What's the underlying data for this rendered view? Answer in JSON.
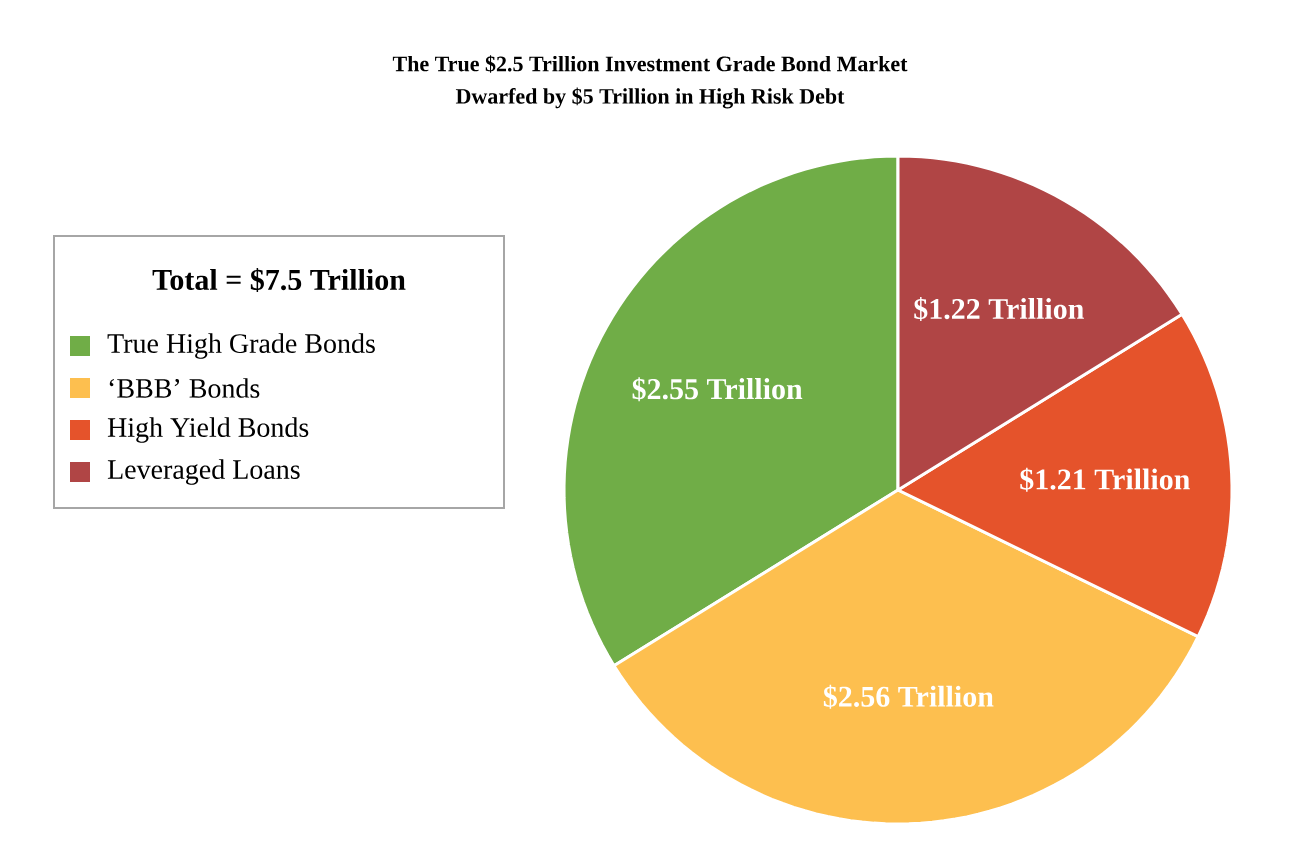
{
  "chart_data": {
    "type": "pie",
    "title": "The True $2.5 Trillion Investment Grade Bond Market",
    "subtitle": "Dwarfed by $5 Trillion in High Risk Debt",
    "legend_title": "Total = $7.5 Trillion",
    "legend": "left",
    "categories": [
      "True High Grade Bonds",
      "‘BBB’ Bonds",
      "High Yield Bonds",
      "Leveraged Loans"
    ],
    "values": [
      2.55,
      2.56,
      1.21,
      1.22
    ],
    "value_labels": [
      "$2.55 Trillion",
      "$2.56 Trillion",
      "$1.21 Trillion",
      "$1.22 Trillion"
    ],
    "colors": [
      "#70ad47",
      "#fdbf4f",
      "#e5532b",
      "#b04545"
    ]
  }
}
